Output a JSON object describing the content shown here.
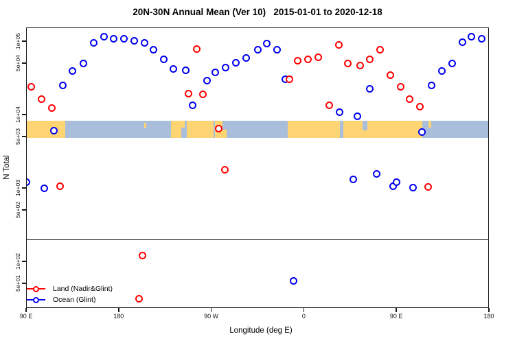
{
  "chart_data": {
    "type": "scatter",
    "title": "20N-30N Annual Mean (Ver 10)   2015-01-01 to 2020-12-18",
    "xlabel": "Longitude (deg E)",
    "ylabel": "N Total",
    "axis_color": "#1a1a1a",
    "x_axis": {
      "min": 90,
      "max": 540,
      "note": "longitude axis wraps eastward from 90E through 180, 90W, 0, 90E to 180",
      "ticks": [
        {
          "pos": 90,
          "label": "90 E"
        },
        {
          "pos": 180,
          "label": "180"
        },
        {
          "pos": 270,
          "label": "90 W"
        },
        {
          "pos": 360,
          "label": "0"
        },
        {
          "pos": 450,
          "label": "90 E"
        },
        {
          "pos": 540,
          "label": "180"
        }
      ]
    },
    "y_axis": {
      "scale": "log",
      "range": [
        23,
        154000
      ],
      "ticks": [
        {
          "value": 100000,
          "label": "1e+05"
        },
        {
          "value": 50000,
          "label": "5e+04"
        },
        {
          "value": 10000,
          "label": "1e+04"
        },
        {
          "value": 5000,
          "label": "5e+03"
        },
        {
          "value": 1000,
          "label": "1e+03"
        },
        {
          "value": 500,
          "label": "5e+02"
        },
        {
          "value": 100,
          "label": "1e+02"
        },
        {
          "value": 50,
          "label": "5e+01"
        }
      ]
    },
    "threshold_line_value": 200,
    "map_band": {
      "top_value": 8200,
      "bottom_value": 4800,
      "ocean_color": "#a9bedb",
      "land_color": "#ffd573",
      "land_segments": [
        {
          "x": 0.0,
          "w": 0.085
        },
        {
          "x": 0.313,
          "w": 0.03
        },
        {
          "x": 0.347,
          "w": 0.058
        },
        {
          "x": 0.408,
          "w": 0.025
        },
        {
          "x": 0.565,
          "w": 0.113
        },
        {
          "x": 0.686,
          "w": 0.17
        }
      ],
      "ocean_notches": [
        {
          "x": 0.335,
          "w": 0.008,
          "top": 0.4,
          "h": 0.6
        },
        {
          "x": 0.425,
          "w": 0.008,
          "top": 0.0,
          "h": 0.5
        },
        {
          "x": 0.727,
          "w": 0.01,
          "top": 0.0,
          "h": 0.55
        }
      ],
      "islets": [
        {
          "x": 0.255,
          "w": 0.005,
          "top": 0.1,
          "h": 0.35
        },
        {
          "x": 0.869,
          "w": 0.006,
          "top": 0.0,
          "h": 0.4
        }
      ]
    },
    "series": [
      {
        "id": "land",
        "name": "Land (Nadir&Glint)",
        "color": "#ff0000",
        "points": [
          [
            95,
            24000
          ],
          [
            105,
            16100
          ],
          [
            115,
            12400
          ],
          [
            248,
            19100
          ],
          [
            256,
            78900
          ],
          [
            262,
            18700
          ],
          [
            277,
            6400
          ],
          [
            283,
            1750
          ],
          [
            346,
            30000
          ],
          [
            354,
            54700
          ],
          [
            364,
            56000
          ],
          [
            374,
            59700
          ],
          [
            385,
            13500
          ],
          [
            394,
            87900
          ],
          [
            403,
            50200
          ],
          [
            415,
            46100
          ],
          [
            424,
            56000
          ],
          [
            434,
            75700
          ],
          [
            444,
            34800
          ],
          [
            454,
            24100
          ],
          [
            463,
            16100
          ],
          [
            473,
            12700
          ],
          [
            481,
            1040
          ],
          [
            123,
            1050
          ],
          [
            203,
            119
          ],
          [
            200,
            31
          ]
        ]
      },
      {
        "id": "ocean",
        "name": "Ocean (Glint)",
        "color": "#0000ee",
        "points": [
          [
            126,
            24700
          ],
          [
            135,
            39600
          ],
          [
            146,
            49200
          ],
          [
            156,
            95700
          ],
          [
            166,
            113800
          ],
          [
            175,
            106700
          ],
          [
            185,
            106700
          ],
          [
            195,
            102100
          ],
          [
            205,
            95700
          ],
          [
            214,
            77200
          ],
          [
            224,
            56000
          ],
          [
            233,
            41400
          ],
          [
            245,
            39700
          ],
          [
            252,
            13500
          ],
          [
            266,
            29300
          ],
          [
            274,
            37200
          ],
          [
            284,
            44100
          ],
          [
            294,
            51300
          ],
          [
            304,
            58400
          ],
          [
            315,
            75700
          ],
          [
            324,
            91800
          ],
          [
            334,
            77200
          ],
          [
            342,
            30000
          ],
          [
            117,
            5970
          ],
          [
            395,
            10700
          ],
          [
            412,
            9400
          ],
          [
            424,
            22200
          ],
          [
            475,
            5800
          ],
          [
            484,
            25200
          ],
          [
            494,
            39600
          ],
          [
            504,
            49200
          ],
          [
            514,
            97800
          ],
          [
            523,
            113800
          ],
          [
            533,
            106700
          ],
          [
            90,
            1190
          ],
          [
            108,
            1000
          ],
          [
            408,
            1295
          ],
          [
            431,
            1570
          ],
          [
            447,
            1045
          ],
          [
            450,
            1213
          ],
          [
            466,
            1020
          ],
          [
            350,
            54
          ]
        ]
      }
    ],
    "legend": {
      "items": [
        "Land (Nadir&Glint)",
        "Ocean (Glint)"
      ],
      "position": "bottom-left"
    }
  }
}
